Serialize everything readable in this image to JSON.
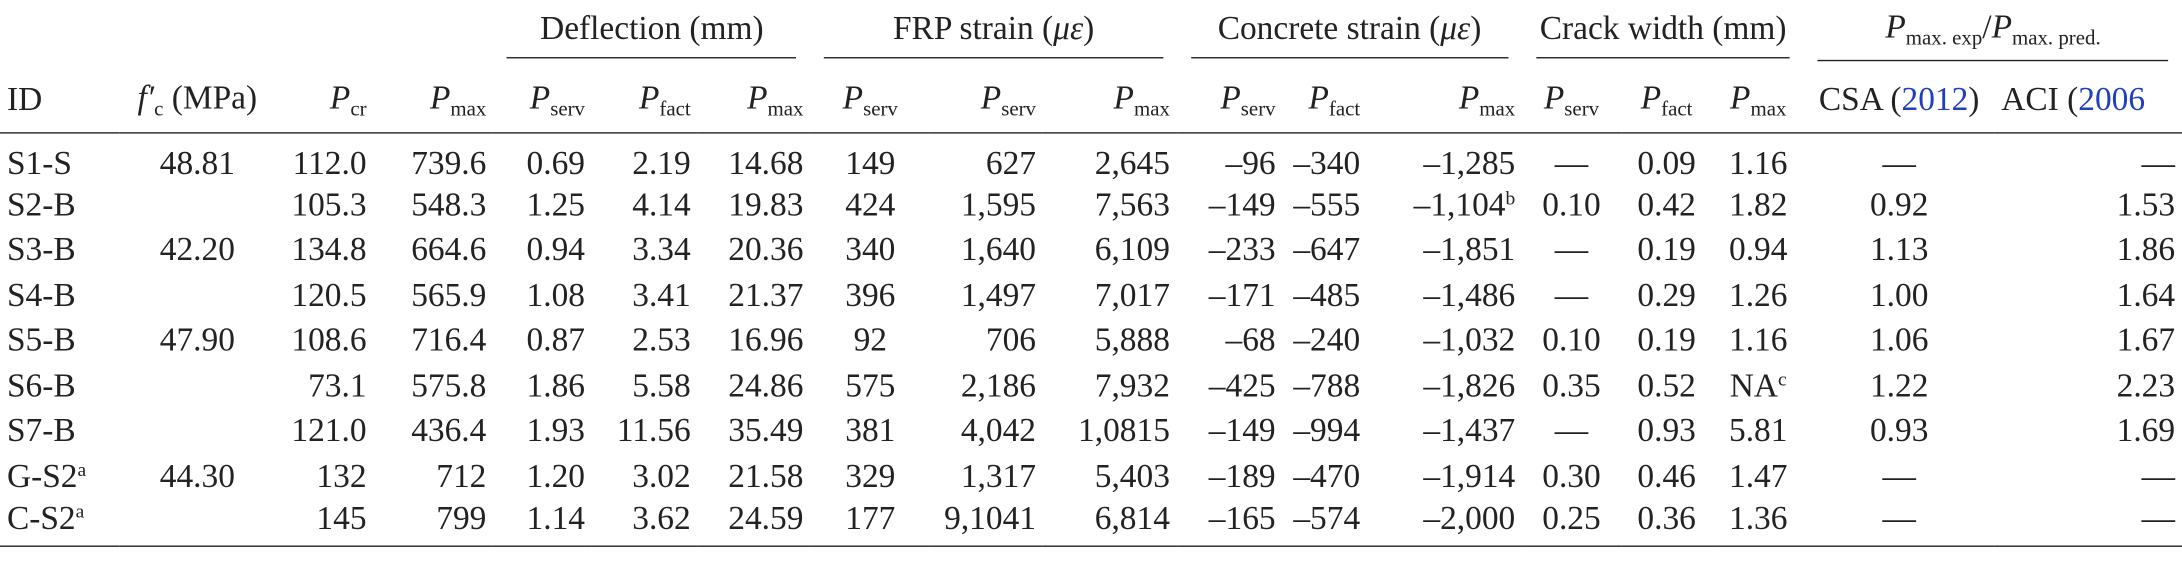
{
  "table": {
    "groups": [
      {
        "text": "Deflection (mm)"
      },
      {
        "text": "FRP strain (",
        "math": "με",
        "tail": ")"
      },
      {
        "text": "Concrete strain (",
        "math": "με",
        "tail": ")"
      },
      {
        "text": "Crack width (mm)"
      },
      {
        "parts": [
          {
            "text": "P",
            "sub": "max. exp"
          },
          {
            "text": "/"
          },
          {
            "text": "P",
            "sub": "max. pred."
          }
        ]
      }
    ],
    "columns": [
      {
        "text": "ID"
      },
      {
        "text": "f′",
        "sub": "c",
        "tail": " (MPa)"
      },
      {
        "text": "P",
        "sub": "cr"
      },
      {
        "text": "P",
        "sub": "max"
      },
      {
        "text": "P",
        "sub": "serv"
      },
      {
        "text": "P",
        "sub": "fact"
      },
      {
        "text": "P",
        "sub": "max"
      },
      {
        "text": "P",
        "sub": "serv"
      },
      {
        "text": "P",
        "sub": "serv"
      },
      {
        "text": "P",
        "sub": "max"
      },
      {
        "text": "P",
        "sub": "serv"
      },
      {
        "text": "P",
        "sub": "fact"
      },
      {
        "text": "P",
        "sub": "max"
      },
      {
        "text": "P",
        "sub": "serv"
      },
      {
        "text": "P",
        "sub": "fact"
      },
      {
        "text": "P",
        "sub": "max"
      },
      {
        "text": "CSA (",
        "ref": "2012",
        "tail": ")"
      },
      {
        "text": "ACI (",
        "ref": "2006"
      }
    ],
    "rows": [
      [
        "S1-S",
        "48.81",
        "112.0",
        "739.6",
        "0.69",
        "2.19",
        "14.68",
        "149",
        "627",
        "2,645",
        "–96",
        "–340",
        "–1,285",
        "—",
        "0.09",
        "1.16",
        "—",
        "—"
      ],
      [
        "S2-B",
        null,
        "105.3",
        "548.3",
        "1.25",
        "4.14",
        "19.83",
        "424",
        "1,595",
        "7,563",
        "–149",
        "–555",
        {
          "text": "–1,104",
          "sup": "b"
        },
        "0.10",
        "0.42",
        "1.82",
        "0.92",
        "1.53"
      ],
      [
        "S3-B",
        "42.20",
        "134.8",
        "664.6",
        "0.94",
        "3.34",
        "20.36",
        "340",
        "1,640",
        "6,109",
        "–233",
        "–647",
        "–1,851",
        "—",
        "0.19",
        "0.94",
        "1.13",
        "1.86"
      ],
      [
        "S4-B",
        null,
        "120.5",
        "565.9",
        "1.08",
        "3.41",
        "21.37",
        "396",
        "1,497",
        "7,017",
        "–171",
        "–485",
        "–1,486",
        "—",
        "0.29",
        "1.26",
        "1.00",
        "1.64"
      ],
      [
        "S5-B",
        "47.90",
        "108.6",
        "716.4",
        "0.87",
        "2.53",
        "16.96",
        "92",
        "706",
        "5,888",
        "–68",
        "–240",
        "–1,032",
        "0.10",
        "0.19",
        "1.16",
        "1.06",
        "1.67"
      ],
      [
        "S6-B",
        null,
        "73.1",
        "575.8",
        "1.86",
        "5.58",
        "24.86",
        "575",
        "2,186",
        "7,932",
        "–425",
        "–788",
        "–1,826",
        "0.35",
        "0.52",
        {
          "text": "NA",
          "sup": "c"
        },
        "1.22",
        "2.23"
      ],
      [
        "S7-B",
        null,
        "121.0",
        "436.4",
        "1.93",
        "11.56",
        "35.49",
        "381",
        "4,042",
        "1,0815",
        "–149",
        "–994",
        "–1,437",
        "—",
        "0.93",
        "5.81",
        "0.93",
        "1.69"
      ],
      [
        {
          "text": "G-S2",
          "sup": "a"
        },
        "44.30",
        "132",
        "712",
        "1.20",
        "3.02",
        "21.58",
        "329",
        "1,317",
        "5,403",
        "–189",
        "–470",
        "–1,914",
        "0.30",
        "0.46",
        "1.47",
        "—",
        "—"
      ],
      [
        {
          "text": "C-S2",
          "sup": "a"
        },
        null,
        "145",
        "799",
        "1.14",
        "3.62",
        "24.59",
        "177",
        "9,1041",
        "6,814",
        "–165",
        "–574",
        "–2,000",
        "0.25",
        "0.36",
        "1.36",
        "—",
        "—"
      ]
    ]
  }
}
